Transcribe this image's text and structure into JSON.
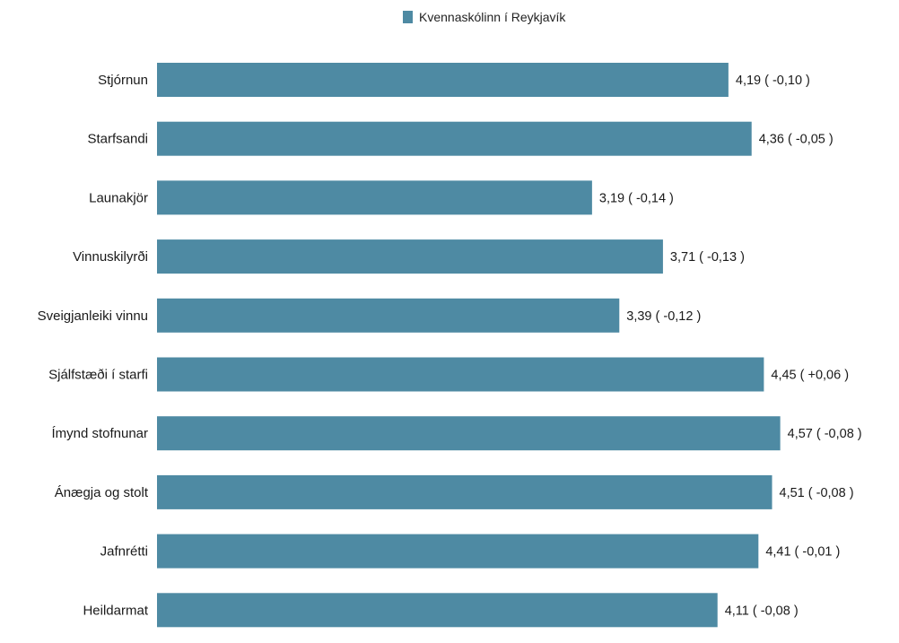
{
  "chart_data": {
    "type": "bar",
    "orientation": "horizontal",
    "categories": [
      "Stjórnun",
      "Starfsandi",
      "Launakjör",
      "Vinnuskilyrði",
      "Sveigjanleiki vinnu",
      "Sjálfstæði í starfi",
      "Ímynd stofnunar",
      "Ánægja og stolt",
      "Jafnrétti",
      "Heildarmat"
    ],
    "series": [
      {
        "name": "Kvennaskólinn í Reykjavík",
        "color": "#4e8aa3",
        "values": [
          4.19,
          4.36,
          3.19,
          3.71,
          3.39,
          4.45,
          4.57,
          4.51,
          4.41,
          4.11
        ],
        "data_labels": [
          "4,19 ( -0,10 )",
          "4,36 ( -0,05 )",
          "3,19 ( -0,14 )",
          "3,71 ( -0,13 )",
          "3,39 ( -0,12 )",
          "4,45 ( +0,06 )",
          "4,57 ( -0,08 )",
          "4,51 ( -0,08 )",
          "4,41 ( -0,01 )",
          "4,11 ( -0,08 )"
        ]
      }
    ],
    "legend": "top-center",
    "grid": false
  }
}
